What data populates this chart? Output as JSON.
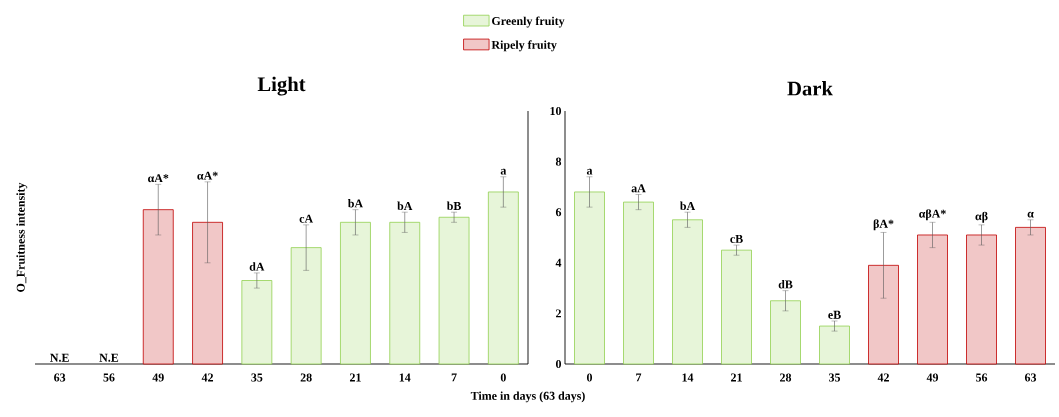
{
  "chart_data": [
    {
      "type": "bar",
      "title": "Light",
      "ylabel": "O_Fruitness intensity",
      "xlabel": "Time in days (63 days)",
      "categories": [
        "63",
        "56",
        "49",
        "42",
        "35",
        "28",
        "21",
        "14",
        "7",
        "0"
      ],
      "series": [
        {
          "name": "Greenly fruity",
          "color": "#92d050",
          "values": [
            null,
            null,
            null,
            null,
            3.3,
            4.6,
            5.6,
            5.6,
            5.8,
            6.8
          ],
          "errors": [
            null,
            null,
            null,
            null,
            0.3,
            0.9,
            0.5,
            0.4,
            0.2,
            0.6
          ]
        },
        {
          "name": "Ripely fruity",
          "color": "#c00000",
          "values": [
            null,
            null,
            6.1,
            5.6,
            null,
            null,
            null,
            null,
            null,
            null
          ],
          "errors": [
            null,
            null,
            1.0,
            1.6,
            null,
            null,
            null,
            null,
            null,
            null
          ]
        }
      ],
      "ylim": [
        0,
        10
      ],
      "tick_labels": "x",
      "legend": "top",
      "annotations": [
        "N.E",
        "N.E",
        {
          "text": "αA*",
          "x": "49",
          "y": 7.1
        },
        {
          "text": "αA*",
          "x": "42",
          "y": 7.2
        },
        {
          "text": "dA",
          "x": "35",
          "y": 3.6
        },
        {
          "text": "cA",
          "x": "28",
          "y": 5.5
        },
        {
          "text": "bA",
          "x": "21",
          "y": 6.1
        },
        {
          "text": "bA",
          "x": "14",
          "y": 6.0
        },
        {
          "text": "bB",
          "x": "7",
          "y": 6.0
        },
        {
          "text": "a",
          "x": "0",
          "y": 7.4
        }
      ]
    },
    {
      "type": "bar",
      "title": "Dark",
      "categories": [
        "0",
        "7",
        "14",
        "21",
        "28",
        "35",
        "42",
        "49",
        "56",
        "63"
      ],
      "series": [
        {
          "color": "#92d050",
          "values": [
            6.8,
            6.4,
            5.7,
            4.5,
            2.5,
            1.5,
            null,
            null,
            null,
            null
          ],
          "errors": [
            0.6,
            0.3,
            0.3,
            0.2,
            0.4,
            0.2,
            null,
            null,
            null,
            null
          ]
        },
        {
          "color": "#c00000",
          "values": [
            null,
            null,
            null,
            null,
            null,
            null,
            3.9,
            5.1,
            5.1,
            5.4
          ],
          "errors": [
            null,
            null,
            null,
            null,
            null,
            null,
            1.3,
            0.5,
            0.4,
            0.3
          ]
        }
      ],
      "ylim": [
        0,
        10
      ],
      "yticks": [
        0,
        2,
        4,
        6,
        8,
        10
      ],
      "annotations": [
        {
          "text": "a",
          "x": "0",
          "y": 7.4
        },
        {
          "text": "aA",
          "x": "7",
          "y": 6.7
        },
        {
          "text": "bA",
          "x": "14",
          "y": 6.0
        },
        {
          "text": "cB",
          "x": "21",
          "y": 4.7
        },
        {
          "text": "dB",
          "x": "28",
          "y": 2.9
        },
        {
          "text": "eB",
          "x": "35",
          "y": 1.7
        },
        {
          "text": "βA*",
          "x": "42",
          "y": 5.2
        },
        {
          "text": "αβA*",
          "x": "49",
          "y": 5.6
        },
        {
          "text": "αβ",
          "x": "56",
          "y": 5.5
        },
        {
          "text": "α",
          "x": "63",
          "y": 5.7
        }
      ]
    }
  ]
}
